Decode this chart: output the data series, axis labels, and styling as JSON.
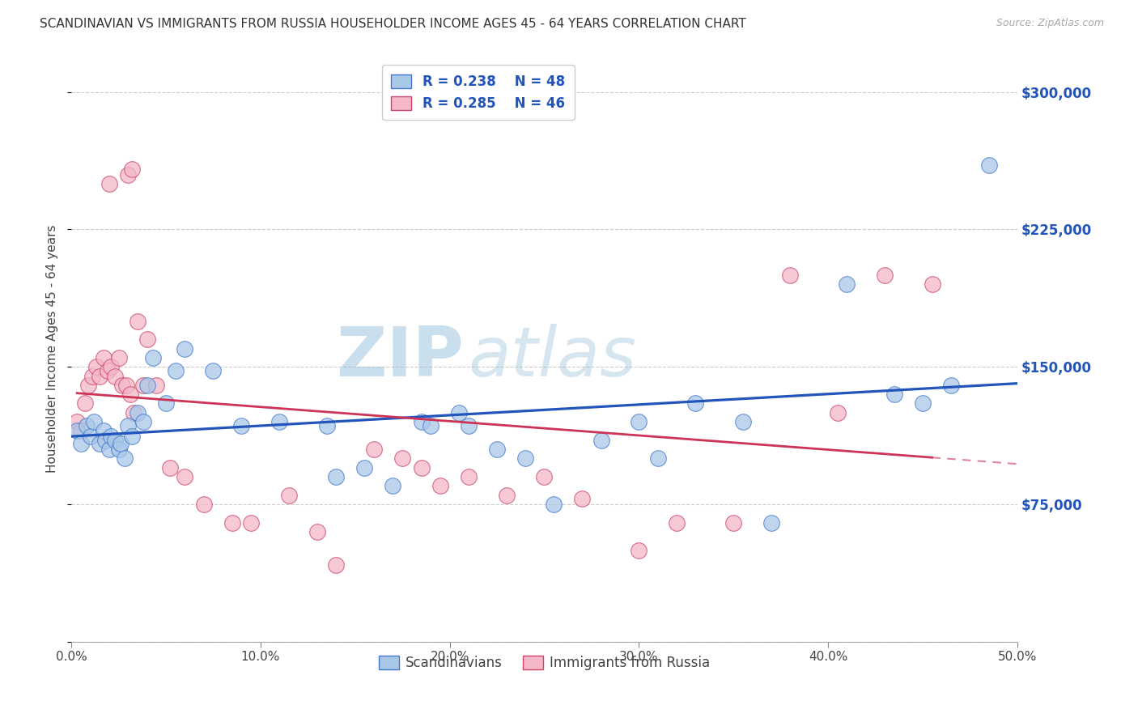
{
  "title": "SCANDINAVIAN VS IMMIGRANTS FROM RUSSIA HOUSEHOLDER INCOME AGES 45 - 64 YEARS CORRELATION CHART",
  "source": "Source: ZipAtlas.com",
  "ylabel": "Householder Income Ages 45 - 64 years",
  "xlim": [
    0.0,
    50.0
  ],
  "ylim": [
    0,
    320000
  ],
  "yticks": [
    0,
    75000,
    150000,
    225000,
    300000
  ],
  "ytick_labels": [
    "",
    "$75,000",
    "$150,000",
    "$225,000",
    "$300,000"
  ],
  "xticks": [
    0,
    10,
    20,
    30,
    40,
    50
  ],
  "xtick_labels": [
    "0.0%",
    "10.0%",
    "20.0%",
    "30.0%",
    "40.0%",
    "50.0%"
  ],
  "grid_color": "#cccccc",
  "bg_color": "#ffffff",
  "watermark_zip": "ZIP",
  "watermark_atlas": "atlas",
  "r1": "0.238",
  "n1": "48",
  "r2": "0.285",
  "n2": "46",
  "sc_color": "#a8c8e8",
  "ru_color": "#f4b8c8",
  "blue_edge": "#4477cc",
  "pink_edge": "#cc4466",
  "trendline_blue": "#2255bb",
  "trendline_pink": "#cc3355",
  "sc_x": [
    0.3,
    0.5,
    0.8,
    1.0,
    1.2,
    1.5,
    1.7,
    1.8,
    2.0,
    2.1,
    2.3,
    2.5,
    2.6,
    2.8,
    3.0,
    3.2,
    3.5,
    3.8,
    4.0,
    4.3,
    5.0,
    5.5,
    6.0,
    7.5,
    9.0,
    11.0,
    13.5,
    14.0,
    15.5,
    17.0,
    18.5,
    19.0,
    20.5,
    21.0,
    22.5,
    24.0,
    25.5,
    28.0,
    30.0,
    31.0,
    33.0,
    35.5,
    37.0,
    41.0,
    43.5,
    45.0,
    46.5,
    48.5
  ],
  "sc_y": [
    115000,
    108000,
    118000,
    112000,
    120000,
    108000,
    115000,
    110000,
    105000,
    112000,
    110000,
    105000,
    108000,
    100000,
    118000,
    112000,
    125000,
    120000,
    140000,
    155000,
    130000,
    148000,
    160000,
    148000,
    118000,
    120000,
    118000,
    90000,
    95000,
    85000,
    120000,
    118000,
    125000,
    118000,
    105000,
    100000,
    75000,
    110000,
    120000,
    100000,
    130000,
    120000,
    65000,
    195000,
    135000,
    130000,
    140000,
    260000
  ],
  "ru_x": [
    0.3,
    0.5,
    0.7,
    0.9,
    1.1,
    1.3,
    1.5,
    1.7,
    1.9,
    2.1,
    2.3,
    2.5,
    2.7,
    2.9,
    3.1,
    3.3,
    3.5,
    3.8,
    4.0,
    4.5,
    5.2,
    6.0,
    7.0,
    8.5,
    9.5,
    11.5,
    13.0,
    14.0,
    16.0,
    17.5,
    18.5,
    19.5,
    21.0,
    23.0,
    25.0,
    27.0,
    30.0,
    32.0,
    35.0,
    38.0,
    40.5,
    43.0,
    45.5,
    2.0,
    3.0,
    3.2
  ],
  "ru_y": [
    120000,
    115000,
    130000,
    140000,
    145000,
    150000,
    145000,
    155000,
    148000,
    150000,
    145000,
    155000,
    140000,
    140000,
    135000,
    125000,
    175000,
    140000,
    165000,
    140000,
    95000,
    90000,
    75000,
    65000,
    65000,
    80000,
    60000,
    42000,
    105000,
    100000,
    95000,
    85000,
    90000,
    80000,
    90000,
    78000,
    50000,
    65000,
    65000,
    200000,
    125000,
    200000,
    195000,
    250000,
    255000,
    258000
  ]
}
